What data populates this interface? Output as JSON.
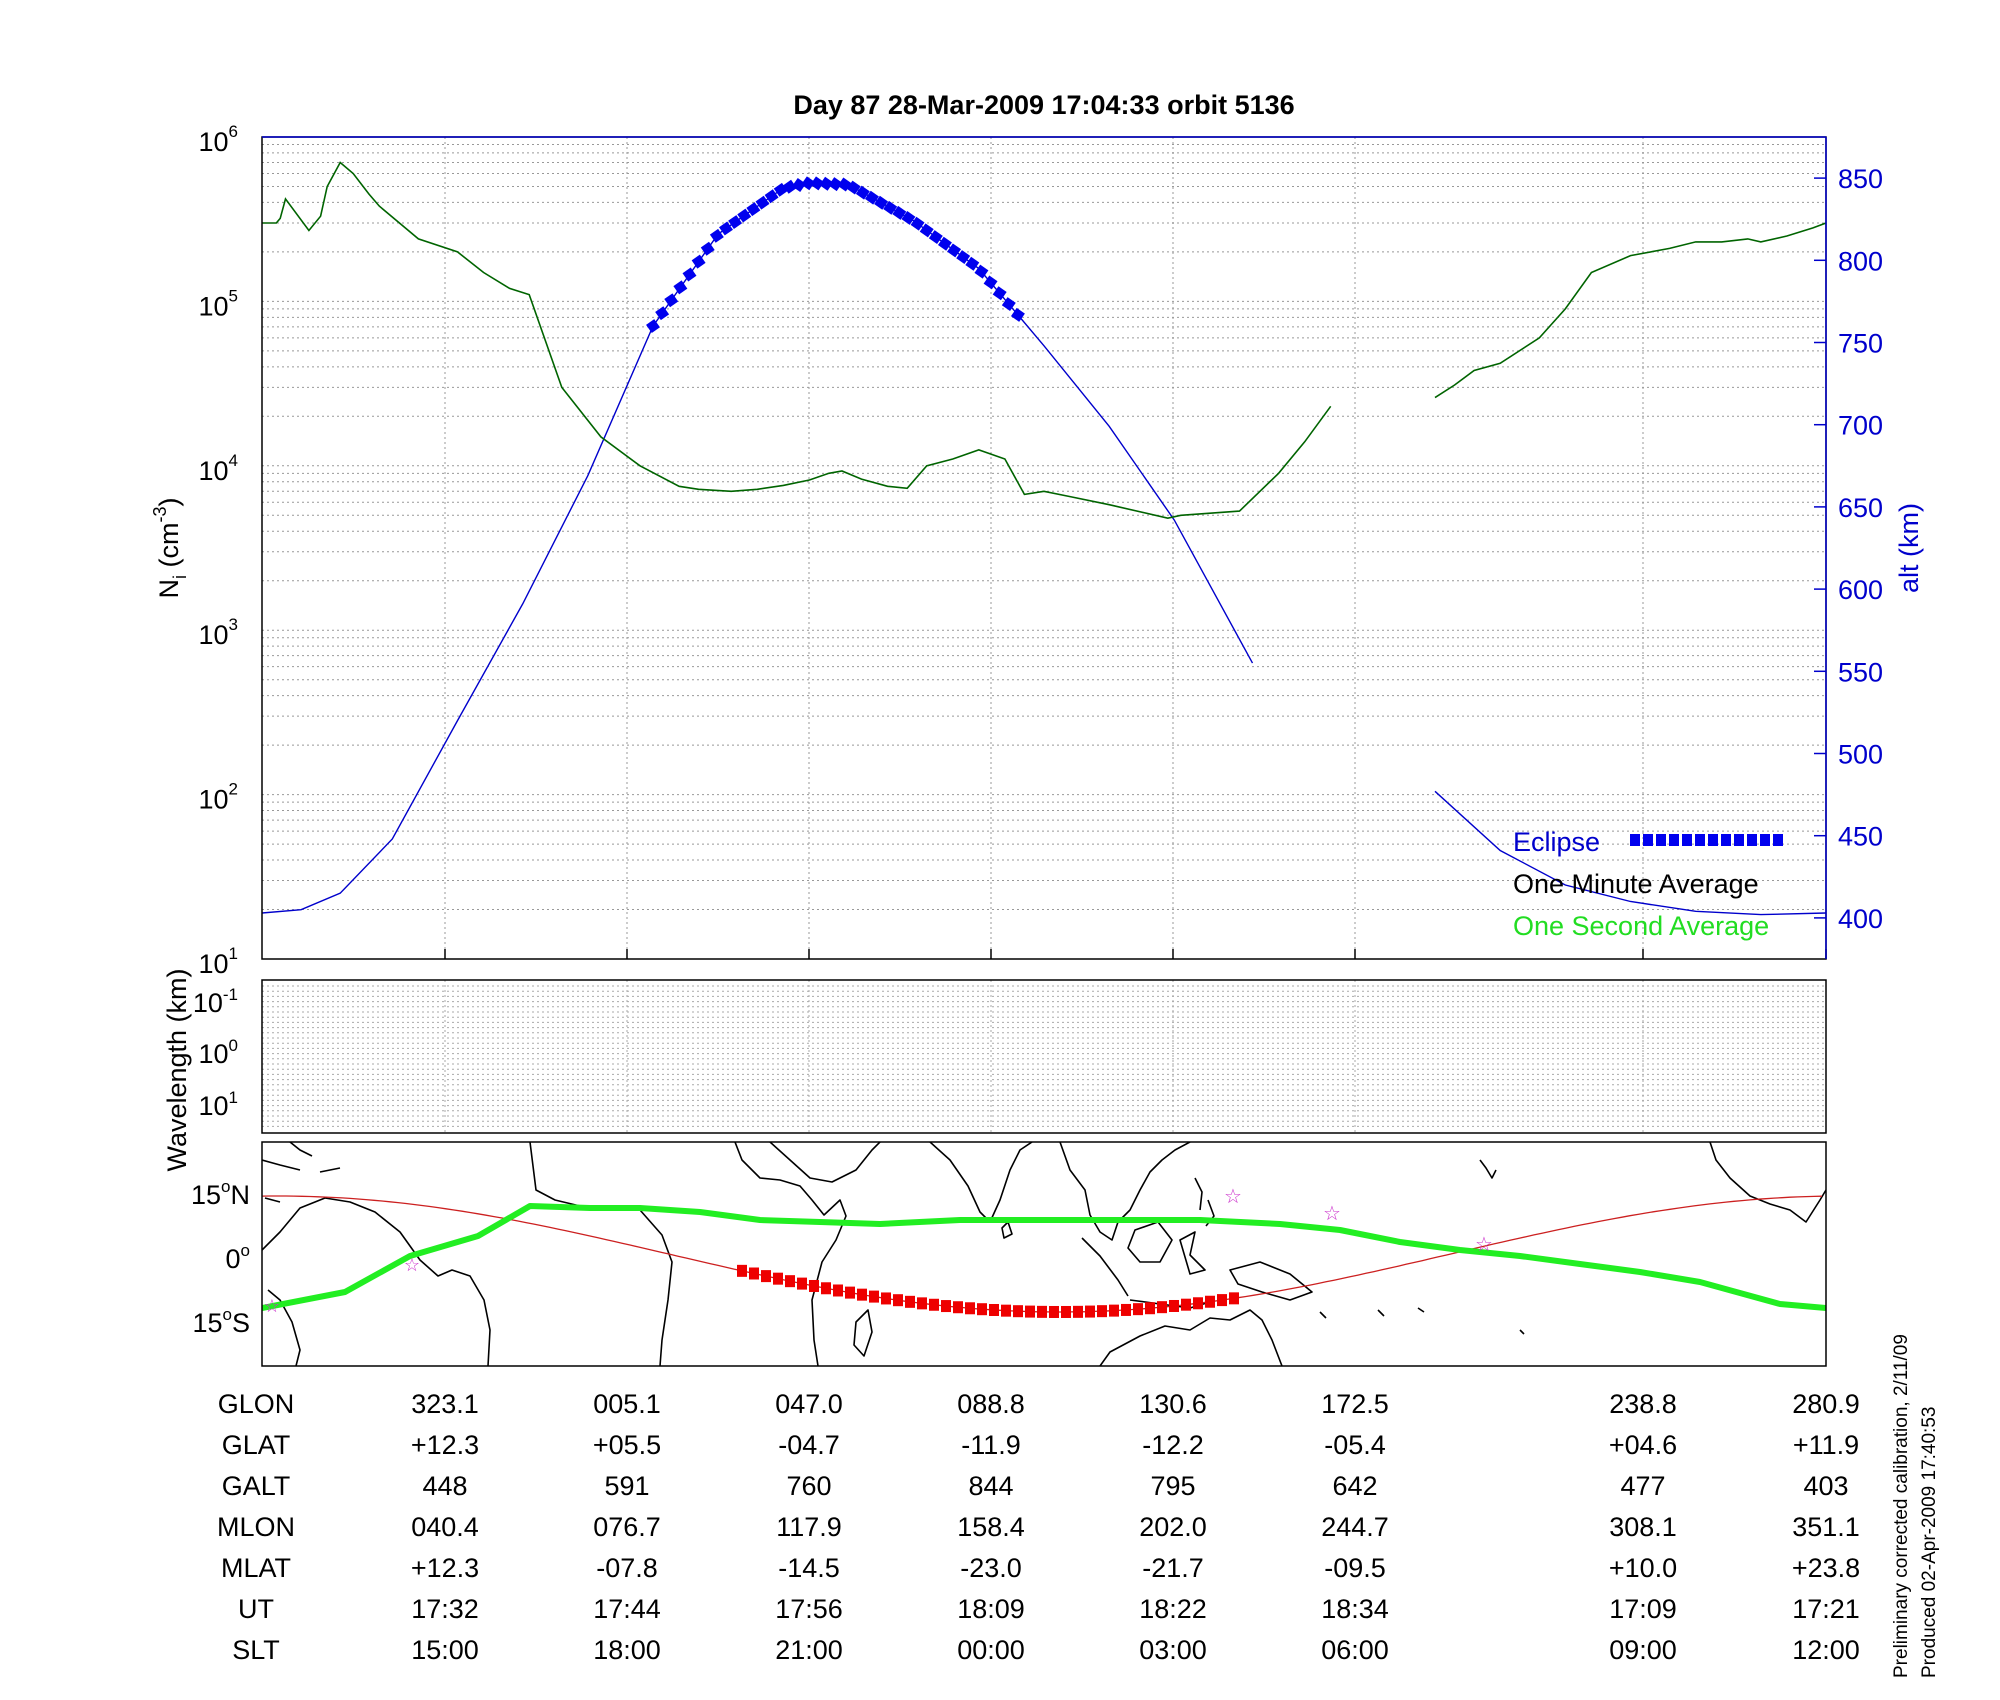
{
  "title": "Day 87  28-Mar-2009 17:04:33   orbit 5136",
  "top_panel": {
    "ylabel_main": "N",
    "ylabel_sub": "i",
    "ylabel_rest": " (cm",
    "ylabel_exp": "-3",
    "ylabel_close": ")",
    "right_ylabel": "alt (km)",
    "yticks_left": [
      {
        "base": "10",
        "exp": "1",
        "value": 1
      },
      {
        "base": "10",
        "exp": "2",
        "value": 2
      },
      {
        "base": "10",
        "exp": "3",
        "value": 3
      },
      {
        "base": "10",
        "exp": "4",
        "value": 4
      },
      {
        "base": "10",
        "exp": "5",
        "value": 5
      },
      {
        "base": "10",
        "exp": "6",
        "value": 6
      }
    ],
    "yticks_right": [
      "400",
      "450",
      "500",
      "550",
      "600",
      "650",
      "700",
      "750",
      "800",
      "850"
    ]
  },
  "legend": {
    "eclipse": "Eclipse",
    "one_minute": "One Minute Average",
    "one_second": "One Second Average"
  },
  "middle_panel": {
    "ylabel": "Wavelength (km)",
    "yticks": [
      {
        "base": "10",
        "exp": "-1"
      },
      {
        "base": "10",
        "exp": "0"
      },
      {
        "base": "10",
        "exp": "1"
      }
    ]
  },
  "map_panel": {
    "lat_ticks": [
      {
        "num": "15",
        "deg": "o",
        "hemi": "N"
      },
      {
        "num": "0",
        "deg": "o",
        "hemi": ""
      },
      {
        "num": "15",
        "deg": "o",
        "hemi": "S"
      }
    ]
  },
  "table": {
    "row_labels": [
      "GLON",
      "GLAT",
      "GALT",
      "MLON",
      "MLAT",
      "UT",
      "SLT"
    ],
    "columns": [
      [
        "323.1",
        "+12.3",
        "448",
        "040.4",
        "+12.3",
        "17:32",
        "15:00"
      ],
      [
        "005.1",
        "+05.5",
        "591",
        "076.7",
        "-07.8",
        "17:44",
        "18:00"
      ],
      [
        "047.0",
        "-04.7",
        "760",
        "117.9",
        "-14.5",
        "17:56",
        "21:00"
      ],
      [
        "088.8",
        "-11.9",
        "844",
        "158.4",
        "-23.0",
        "18:09",
        "00:00"
      ],
      [
        "130.6",
        "-12.2",
        "795",
        "202.0",
        "-21.7",
        "18:22",
        "03:00"
      ],
      [
        "172.5",
        "-05.4",
        "642",
        "244.7",
        "-09.5",
        "18:34",
        "06:00"
      ],
      [
        "238.8",
        "+04.6",
        "477",
        "308.1",
        "+10.0",
        "17:09",
        "09:00"
      ],
      [
        "280.9",
        "+11.9",
        "403",
        "351.1",
        "+23.8",
        "17:21",
        "12:00"
      ]
    ]
  },
  "footer": {
    "line1": "Preliminary corrected calibration, 2/11/09",
    "line2": "Produced 02-Apr-2009 17:40:53"
  },
  "colors": {
    "density_line": "#006400",
    "density_fine": "#22cc22",
    "altitude": "#0000cc",
    "eclipse": "#0000ee",
    "coast": "#000000",
    "orbit_track": "#cc2020",
    "orbit_eclipse": "#ee0000",
    "magnetic_equator": "#22ee22",
    "stars": "#cc33cc"
  },
  "chart_data": {
    "type": "line",
    "x_unit": "SLT",
    "x_ticks": [
      "15:00",
      "18:00",
      "21:00",
      "00:00",
      "03:00",
      "06:00",
      "09:00",
      "12:00"
    ],
    "series": [
      {
        "name": "One Minute Average",
        "axis": "left",
        "scale": "log",
        "ylim": [
          10,
          1000000
        ],
        "x": [
          0.0,
          0.11,
          0.14,
          0.18,
          0.36,
          0.45,
          0.5,
          0.6,
          0.7,
          0.82,
          0.9,
          1.2,
          1.5,
          1.7,
          1.9,
          2.05,
          2.3,
          2.6,
          2.9,
          3.2,
          3.35,
          3.6,
          3.8,
          4.0,
          4.2,
          4.35,
          4.45,
          4.6,
          4.8,
          4.95,
          5.1,
          5.3,
          5.5,
          5.7,
          5.85,
          6.0,
          6.2,
          6.5,
          6.95,
          7.05,
          7.5,
          7.8,
          8.0,
          8.2,
          8.5,
          8.8,
          9.0,
          9.15,
          9.3,
          9.5,
          9.8,
          10.0,
          10.2,
          10.5,
          10.8,
          11.0,
          11.2,
          11.4,
          11.5,
          11.7,
          11.9,
          12.0
        ],
        "y": [
          300000,
          300000,
          320000,
          420000,
          270000,
          330000,
          500000,
          700000,
          600000,
          450000,
          380000,
          240000,
          200000,
          150000,
          120000,
          110000,
          30000,
          15000,
          10000,
          7500,
          7200,
          7000,
          7200,
          7600,
          8200,
          9000,
          9300,
          8300,
          7500,
          7300,
          10000,
          11000,
          12500,
          11000,
          6700,
          7000,
          6500,
          5800,
          4800,
          5000,
          5300,
          9000,
          14000,
          23000,
          null,
          null,
          26000,
          31000,
          38000,
          42000,
          60000,
          90000,
          150000,
          190000,
          210000,
          230000,
          230000,
          240000,
          230000,
          250000,
          280000,
          300000
        ]
      },
      {
        "name": "alt",
        "axis": "right",
        "ylim": [
          375,
          875
        ],
        "x": [
          0.0,
          0.3,
          0.6,
          1.0,
          1.5,
          2.0,
          2.5,
          3.0,
          3.5,
          4.0,
          4.2,
          4.5,
          5.0,
          5.5,
          6.0,
          6.5,
          7.0,
          7.6,
          8.1,
          8.6,
          9.0,
          9.5,
          10.0,
          10.5,
          11.0,
          11.5,
          12.0
        ],
        "y": [
          403,
          405,
          415,
          448,
          520,
          591,
          669,
          760,
          816,
          844,
          847,
          846,
          824,
          795,
          748,
          699,
          642,
          555,
          null,
          null,
          477,
          441,
          420,
          410,
          404,
          402,
          403
        ]
      }
    ],
    "eclipse_x": [
      3.0,
      5.8
    ],
    "right_ylabel": "alt (km)"
  }
}
